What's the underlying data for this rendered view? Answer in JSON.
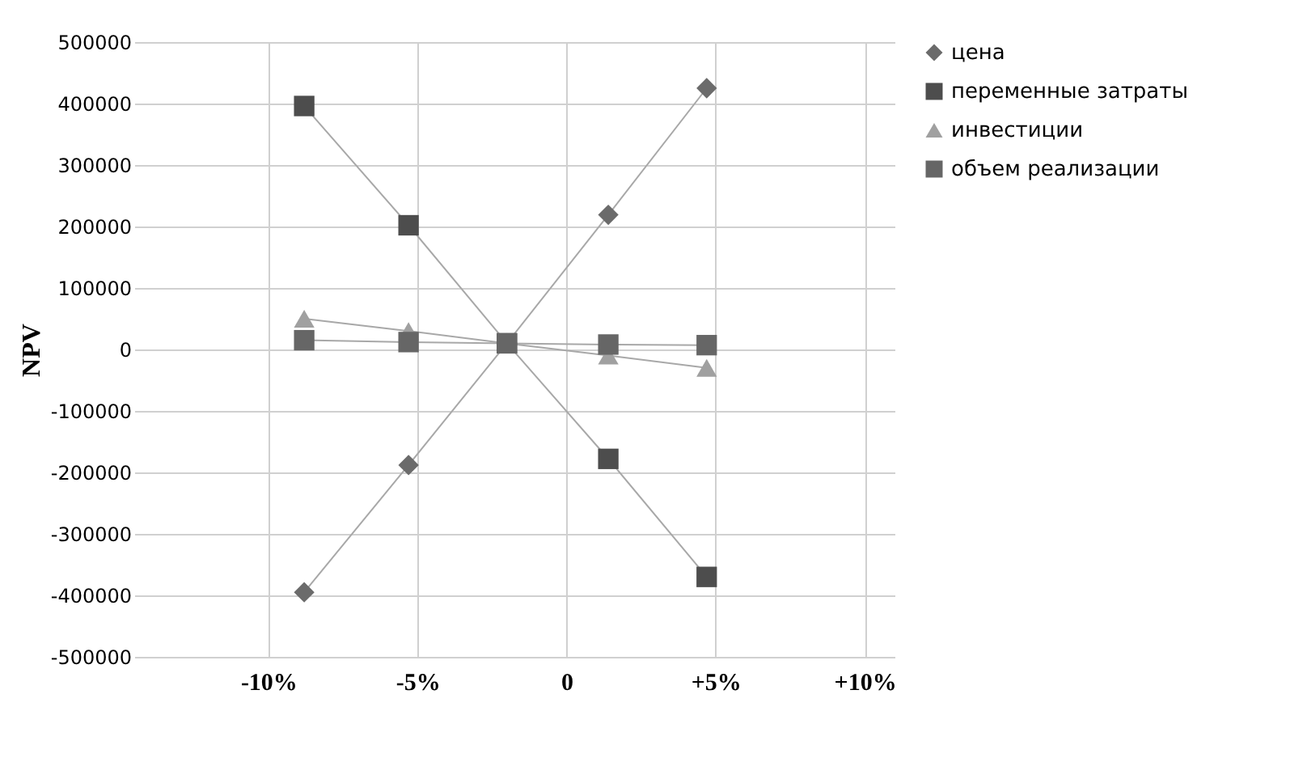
{
  "chart_data": {
    "type": "line",
    "ylabel": "NPV",
    "xlim": [
      -14.5,
      11
    ],
    "xticks": [
      {
        "value": -10,
        "label": "-10%"
      },
      {
        "value": -5,
        "label": "-5%"
      },
      {
        "value": 0,
        "label": "0"
      },
      {
        "value": 5,
        "label": "+5%"
      },
      {
        "value": 10,
        "label": "+10%"
      }
    ],
    "ylim": [
      -500000,
      500000
    ],
    "yticks": [
      -500000,
      -400000,
      -300000,
      -200000,
      -100000,
      0,
      100000,
      200000,
      300000,
      400000,
      500000
    ],
    "x": [
      -8.8,
      -5.3,
      -2,
      1.4,
      4.7
    ],
    "series": [
      {
        "name": "цена",
        "color": "#6b6b6b",
        "marker": "diamond",
        "values": [
          -395000,
          -188000,
          10000,
          219000,
          425000
        ]
      },
      {
        "name": "переменные затраты",
        "color": "#4d4d4d",
        "marker": "square",
        "values": [
          396000,
          202000,
          10000,
          -178000,
          -370000
        ]
      },
      {
        "name": "инвестиции",
        "color": "#a0a0a0",
        "marker": "triangle",
        "values": [
          50000,
          30000,
          10000,
          -10000,
          -30000
        ]
      },
      {
        "name": "объем реализации",
        "color": "#666666",
        "marker": "square",
        "values": [
          15000,
          12000,
          10000,
          8000,
          7000
        ]
      }
    ],
    "grid": true,
    "legend": "right"
  }
}
